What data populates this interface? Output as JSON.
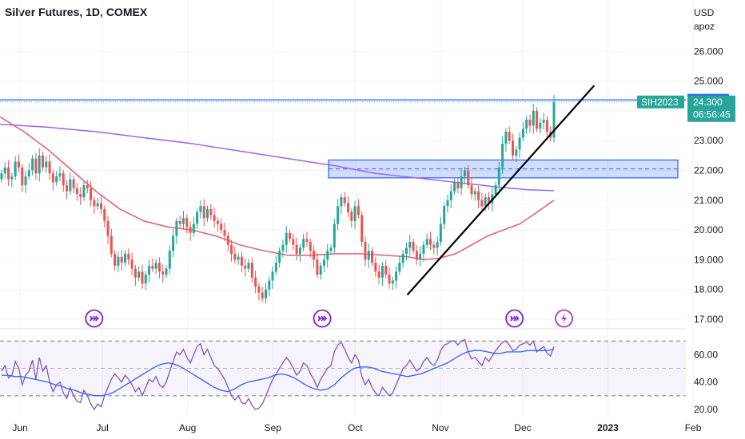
{
  "header": {
    "title": "Silver Futures, 1D, COMEX"
  },
  "price_axis": {
    "currency": "USD",
    "unit": "apoz"
  },
  "chart_data": [
    {
      "type": "candlestick",
      "title": "Silver Futures, 1D, COMEX",
      "ylim": [
        16.8,
        26.3
      ],
      "y_ticks": [
        17,
        18,
        19,
        20,
        21,
        22,
        23,
        24,
        25,
        26
      ],
      "y_tick_labels": [
        "17.000",
        "18.000",
        "19.000",
        "20.000",
        "21.000",
        "22.000",
        "23.000",
        "24.000",
        "25.000",
        "26.000"
      ],
      "x_tick_labels": [
        "Jun",
        "Jul",
        "Aug",
        "Sep",
        "Oct",
        "Nov",
        "Dec",
        "2023",
        "Feb"
      ],
      "x_tick_dates": [
        "2022-06-01",
        "2022-07-01",
        "2022-08-01",
        "2022-09-01",
        "2022-10-01",
        "2022-11-01",
        "2022-12-01",
        "2023-01-01",
        "2023-02-01"
      ],
      "closes": [
        21.9,
        22.1,
        21.7,
        21.8,
        22.3,
        22.1,
        21.5,
        21.8,
        22.0,
        22.4,
        21.9,
        22.5,
        22.1,
        22.3,
        21.9,
        21.6,
        21.8,
        21.9,
        21.5,
        21.3,
        21.7,
        21.4,
        21.2,
        21.1,
        21.5,
        21.4,
        21.0,
        20.8,
        20.9,
        20.7,
        20.3,
        19.8,
        19.2,
        18.8,
        19.1,
        18.9,
        19.2,
        19.0,
        18.7,
        18.4,
        18.6,
        18.2,
        18.5,
        18.8,
        18.7,
        18.9,
        18.6,
        18.5,
        18.7,
        19.3,
        19.8,
        20.3,
        20.2,
        20.4,
        20.1,
        19.9,
        20.2,
        20.6,
        20.8,
        20.4,
        20.7,
        20.5,
        20.3,
        20.2,
        20.0,
        19.8,
        19.5,
        19.2,
        19.0,
        19.1,
        18.8,
        18.7,
        18.9,
        18.4,
        18.1,
        17.9,
        17.7,
        18.0,
        18.3,
        18.6,
        18.9,
        19.3,
        19.5,
        19.9,
        19.7,
        19.5,
        19.2,
        19.4,
        19.7,
        19.6,
        19.3,
        19.0,
        18.5,
        18.8,
        19.0,
        19.3,
        19.4,
        20.2,
        20.8,
        21.1,
        20.9,
        20.6,
        20.3,
        20.8,
        20.5,
        19.6,
        19.0,
        19.3,
        18.9,
        18.6,
        18.4,
        18.8,
        18.5,
        18.2,
        18.3,
        18.6,
        18.9,
        19.2,
        19.4,
        19.6,
        19.3,
        19.0,
        19.2,
        19.5,
        19.7,
        19.5,
        19.4,
        19.6,
        20.2,
        20.8,
        21.0,
        21.3,
        21.6,
        21.4,
        21.8,
        22.0,
        21.5,
        21.2,
        21.3,
        21.0,
        20.8,
        21.1,
        20.9,
        21.2,
        21.5,
        22.1,
        22.9,
        23.3,
        23.0,
        22.5,
        22.7,
        23.1,
        23.4,
        23.7,
        23.5,
        24.0,
        23.4,
        23.6,
        23.7,
        23.3,
        23.1,
        24.3
      ],
      "moving_averages": [
        {
          "color": "#9966ee",
          "values_by_start": [
            23.55,
            23.45,
            23.3,
            23.1,
            22.9,
            22.65,
            22.4,
            22.15,
            21.9,
            21.75,
            21.6,
            21.45,
            21.35,
            21.32
          ]
        },
        {
          "color": "#e65a6e",
          "values_by_start": [
            23.8,
            23.3,
            22.7,
            22.0,
            21.3,
            20.7,
            20.3,
            20.1,
            20.0,
            19.8,
            19.5,
            19.3,
            19.15,
            19.15,
            19.2,
            19.2,
            19.15,
            19.1,
            19.0,
            19.05,
            19.2,
            19.5,
            19.8,
            20.0,
            20.2,
            20.6,
            21.0
          ]
        }
      ],
      "resistance_zone": {
        "low": 21.75,
        "high": 22.35,
        "mid": 22.05
      },
      "trendline": {
        "from": [
          "2022-10-20",
          17.82
        ],
        "to": [
          "2022-12-27",
          24.85
        ]
      },
      "last_price": 24.3,
      "high_line": 24.37,
      "price_tags": [
        {
          "label": "24.370",
          "value": 24.37,
          "color": "#2962ff"
        },
        {
          "label": "SIH2023",
          "value": 24.3,
          "color": "#26a69a"
        },
        {
          "label": "24.300",
          "value": 24.3,
          "color": "#26a69a"
        },
        {
          "label": "06:56:45",
          "value": 24.3,
          "color": "#26a69a"
        }
      ],
      "event_markers": [
        {
          "date": "2022-06-28",
          "icon": "arrow-right-circle-icon",
          "color": "#7b1fd8"
        },
        {
          "date": "2022-09-19",
          "icon": "arrow-right-circle-icon",
          "color": "#7b1fd8"
        },
        {
          "date": "2022-11-28",
          "icon": "arrow-right-circle-icon",
          "color": "#7b1fd8"
        },
        {
          "date": "2022-12-16",
          "icon": "lightning-circle-icon",
          "color": "#b03ab0"
        }
      ],
      "colors": {
        "up": "#26a69a",
        "down": "#ef5350",
        "grid": "#f0f3fa"
      }
    },
    {
      "type": "line",
      "name": "RSI pane",
      "ylim": [
        18,
        72
      ],
      "y_ticks": [
        20,
        40,
        60
      ],
      "y_tick_labels": [
        "20.00",
        "40.00",
        "60.00"
      ],
      "bands": [
        30,
        50,
        70
      ],
      "rsi": [
        48,
        52,
        43,
        45,
        55,
        50,
        38,
        45,
        48,
        56,
        42,
        58,
        48,
        52,
        40,
        33,
        38,
        40,
        32,
        28,
        36,
        30,
        26,
        25,
        34,
        30,
        24,
        20,
        24,
        22,
        30,
        36,
        42,
        46,
        43,
        40,
        45,
        42,
        38,
        33,
        36,
        30,
        36,
        42,
        40,
        44,
        38,
        36,
        40,
        48,
        55,
        62,
        60,
        64,
        58,
        54,
        60,
        66,
        68,
        60,
        64,
        58,
        52,
        50,
        46,
        42,
        36,
        30,
        27,
        30,
        25,
        24,
        28,
        23,
        20,
        21,
        24,
        30,
        36,
        42,
        46,
        50,
        54,
        58,
        55,
        50,
        45,
        48,
        54,
        52,
        46,
        42,
        36,
        42,
        46,
        50,
        52,
        62,
        67,
        69,
        64,
        58,
        54,
        60,
        56,
        44,
        38,
        42,
        36,
        32,
        30,
        36,
        33,
        30,
        32,
        38,
        44,
        50,
        52,
        56,
        52,
        48,
        50,
        55,
        58,
        54,
        52,
        56,
        63,
        67,
        68,
        70,
        70,
        67,
        70,
        71,
        62,
        57,
        58,
        55,
        52,
        58,
        55,
        59,
        63,
        66,
        69,
        70,
        67,
        63,
        64,
        67,
        68,
        69,
        67,
        70,
        62,
        64,
        66,
        61,
        59,
        66
      ],
      "signal": [
        45,
        45,
        44,
        44,
        43,
        42,
        41,
        40,
        38,
        37,
        35,
        34,
        32,
        31,
        30,
        30,
        31,
        33,
        36,
        39,
        42,
        45,
        48,
        51,
        53,
        54,
        53,
        51,
        48,
        45,
        42,
        39,
        36,
        34,
        33,
        35,
        38,
        40,
        41,
        42,
        43,
        45,
        46,
        45,
        43,
        40,
        37,
        35,
        34,
        35,
        38,
        43,
        47,
        50,
        51,
        51,
        50,
        48,
        47,
        46,
        45,
        44,
        45,
        46,
        48,
        50,
        52,
        54,
        57,
        60,
        62,
        63,
        63,
        62,
        61,
        61,
        62,
        62,
        62,
        63,
        63,
        63,
        63,
        64
      ]
    }
  ]
}
